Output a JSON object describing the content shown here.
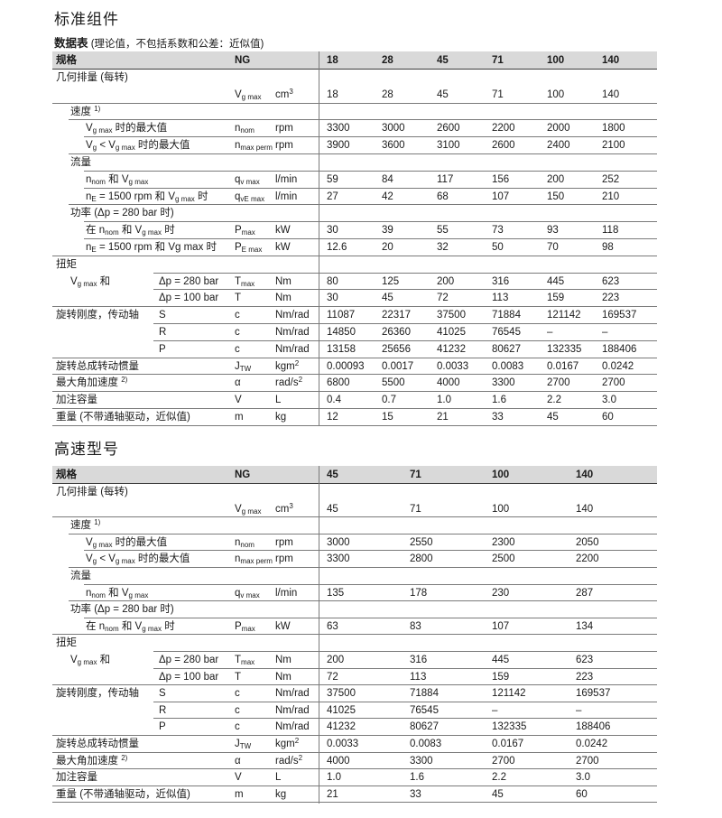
{
  "page": {
    "section1_title": "标准组件",
    "subtitle_bold": "数据表",
    "subtitle_rest": "(理论值，不包括系数和公差：近似值)",
    "section2_title": "高速型号"
  },
  "colors": {
    "header_bg": "#d9d9d9",
    "rule": "#7a7a7a",
    "header_rule": "#3c3c3c",
    "text": "#1a1a1a"
  },
  "tables": [
    {
      "header": {
        "spec_label": "规格",
        "ng_label": "NG",
        "sizes": [
          "18",
          "28",
          "45",
          "71",
          "100",
          "140"
        ]
      },
      "value_offsets": [
        304,
        365,
        426,
        487,
        548,
        609
      ],
      "rows": [
        {
          "label": "几何排量 (每转)",
          "indent": 0,
          "rule": "none"
        },
        {
          "symbol": "V~g max~",
          "unit": "cm^3^",
          "values": [
            "18",
            "28",
            "45",
            "71",
            "100",
            "140"
          ],
          "rule": "full"
        },
        {
          "label": "速度 ^1)^",
          "indent": 1,
          "rule": "i1"
        },
        {
          "label": "V~g max~ 时的最大值",
          "indent": 2,
          "symbol": "n~nom~",
          "unit": "rpm",
          "values": [
            "3300",
            "3000",
            "2600",
            "2200",
            "2000",
            "1800"
          ],
          "rule": "i2"
        },
        {
          "label": "V~g~ < V~g max~ 时的最大值",
          "indent": 2,
          "symbol": "n~max perm~",
          "unit": "rpm",
          "values": [
            "3900",
            "3600",
            "3100",
            "2600",
            "2400",
            "2100"
          ],
          "rule": "i1"
        },
        {
          "label": "流量",
          "indent": 1,
          "rule": "i2"
        },
        {
          "label": "n~nom~ 和 V~g max~",
          "indent": 2,
          "symbol": "q~v max~",
          "unit": "l/min",
          "values": [
            "59",
            "84",
            "117",
            "156",
            "200",
            "252"
          ],
          "rule": "i2"
        },
        {
          "label": "n~E~ = 1500 rpm 和 V~g max~ 时",
          "indent": 2,
          "symbol": "q~vE max~",
          "unit": "l/min",
          "values": [
            "27",
            "42",
            "68",
            "107",
            "150",
            "210"
          ],
          "rule": "i1"
        },
        {
          "label": "功率 (Δp = 280 bar 时)",
          "indent": 1,
          "rule": "i2"
        },
        {
          "label": "在 n~nom~ 和 V~g max~ 时",
          "indent": 2,
          "symbol": "P~max~",
          "unit": "kW",
          "values": [
            "30",
            "39",
            "55",
            "73",
            "93",
            "118"
          ],
          "rule": "i2"
        },
        {
          "label": "n~E~ = 1500 rpm 和 Vg max 时",
          "indent": 2,
          "symbol": "P~E max~",
          "unit": "kW",
          "values": [
            "12.6",
            "20",
            "32",
            "50",
            "70",
            "98"
          ],
          "rule": "full"
        },
        {
          "label": "扭矩",
          "indent": 0,
          "rule": "sub"
        },
        {
          "label": "V~g max~ 和",
          "indent": 1,
          "sublabel": "Δp = 280 bar",
          "symbol": "T~max~",
          "unit": "Nm",
          "values": [
            "80",
            "125",
            "200",
            "316",
            "445",
            "623"
          ],
          "rule": "sub"
        },
        {
          "sublabel": "Δp = 100 bar",
          "symbol": "T",
          "unit": "Nm",
          "values": [
            "30",
            "45",
            "72",
            "113",
            "159",
            "223"
          ],
          "rule": "full"
        },
        {
          "label": "旋转刚度，传动轴",
          "indent": 0,
          "sublabel": "S",
          "symbol": "c",
          "unit": "Nm/rad",
          "values": [
            "11087",
            "22317",
            "37500",
            "71884",
            "121142",
            "169537"
          ],
          "rule": "sub"
        },
        {
          "sublabel": "R",
          "symbol": "c",
          "unit": "Nm/rad",
          "values": [
            "14850",
            "26360",
            "41025",
            "76545",
            "–",
            "–"
          ],
          "rule": "sub"
        },
        {
          "sublabel": "P",
          "symbol": "c",
          "unit": "Nm/rad",
          "values": [
            "13158",
            "25656",
            "41232",
            "80627",
            "132335",
            "188406"
          ],
          "rule": "full"
        },
        {
          "label": "旋转总成转动惯量",
          "indent": 0,
          "symbol": "J~TW~",
          "unit": "kgm^2^",
          "values": [
            "0.00093",
            "0.0017",
            "0.0033",
            "0.0083",
            "0.0167",
            "0.0242"
          ],
          "rule": "full"
        },
        {
          "label": "最大角加速度 ^2)^",
          "indent": 0,
          "symbol": "α",
          "unit": "rad/s^2^",
          "values": [
            "6800",
            "5500",
            "4000",
            "3300",
            "2700",
            "2700"
          ],
          "rule": "full"
        },
        {
          "label": "加注容量",
          "indent": 0,
          "symbol": "V",
          "unit": "L",
          "values": [
            "0.4",
            "0.7",
            "1.0",
            "1.6",
            "2.2",
            "3.0"
          ],
          "rule": "full"
        },
        {
          "label": "重量 (不带通轴驱动，近似值)",
          "indent": 0,
          "symbol": "m",
          "unit": "kg",
          "values": [
            "12",
            "15",
            "21",
            "33",
            "45",
            "60"
          ],
          "rule": "full"
        }
      ]
    },
    {
      "header": {
        "spec_label": "规格",
        "ng_label": "NG",
        "sizes": [
          "45",
          "71",
          "100",
          "140"
        ]
      },
      "value_offsets": [
        304,
        396,
        487,
        580
      ],
      "rows": [
        {
          "label": "几何排量 (每转)",
          "indent": 0,
          "rule": "none"
        },
        {
          "symbol": "V~g max~",
          "unit": "cm^3^",
          "values": [
            "45",
            "71",
            "100",
            "140"
          ],
          "rule": "full"
        },
        {
          "label": "速度 ^1)^",
          "indent": 1,
          "rule": "i1"
        },
        {
          "label": "V~g max~ 时的最大值",
          "indent": 2,
          "symbol": "n~nom~",
          "unit": "rpm",
          "values": [
            "3000",
            "2550",
            "2300",
            "2050"
          ],
          "rule": "i2"
        },
        {
          "label": "V~g~ < V~g max~ 时的最大值",
          "indent": 2,
          "symbol": "n~max perm~",
          "unit": "rpm",
          "values": [
            "3300",
            "2800",
            "2500",
            "2200"
          ],
          "rule": "i1"
        },
        {
          "label": "流量",
          "indent": 1,
          "rule": "i2"
        },
        {
          "label": "n~nom~ 和 V~g max~",
          "indent": 2,
          "symbol": "q~v max~",
          "unit": "l/min",
          "values": [
            "135",
            "178",
            "230",
            "287"
          ],
          "rule": "i1"
        },
        {
          "label": "功率 (Δp = 280 bar 时)",
          "indent": 1,
          "rule": "i2"
        },
        {
          "label": "在 n~nom~ 和 V~g max~ 时",
          "indent": 2,
          "symbol": "P~max~",
          "unit": "kW",
          "values": [
            "63",
            "83",
            "107",
            "134"
          ],
          "rule": "full"
        },
        {
          "label": "扭矩",
          "indent": 0,
          "rule": "sub"
        },
        {
          "label": "V~g max~ 和",
          "indent": 1,
          "sublabel": "Δp = 280 bar",
          "symbol": "T~max~",
          "unit": "Nm",
          "values": [
            "200",
            "316",
            "445",
            "623"
          ],
          "rule": "sub"
        },
        {
          "sublabel": "Δp = 100 bar",
          "symbol": "T",
          "unit": "Nm",
          "values": [
            "72",
            "113",
            "159",
            "223"
          ],
          "rule": "full"
        },
        {
          "label": "旋转刚度，传动轴",
          "indent": 0,
          "sublabel": "S",
          "symbol": "c",
          "unit": "Nm/rad",
          "values": [
            "37500",
            "71884",
            "121142",
            "169537"
          ],
          "rule": "sub"
        },
        {
          "sublabel": "R",
          "symbol": "c",
          "unit": "Nm/rad",
          "values": [
            "41025",
            "76545",
            "–",
            "–"
          ],
          "rule": "sub"
        },
        {
          "sublabel": "P",
          "symbol": "c",
          "unit": "Nm/rad",
          "values": [
            "41232",
            "80627",
            "132335",
            "188406"
          ],
          "rule": "full"
        },
        {
          "label": "旋转总成转动惯量",
          "indent": 0,
          "symbol": "J~TW~",
          "unit": "kgm^2^",
          "values": [
            "0.0033",
            "0.0083",
            "0.0167",
            "0.0242"
          ],
          "rule": "full"
        },
        {
          "label": "最大角加速度 ^2)^",
          "indent": 0,
          "symbol": "α",
          "unit": "rad/s^2^",
          "values": [
            "4000",
            "3300",
            "2700",
            "2700"
          ],
          "rule": "full"
        },
        {
          "label": "加注容量",
          "indent": 0,
          "symbol": "V",
          "unit": "L",
          "values": [
            "1.0",
            "1.6",
            "2.2",
            "3.0"
          ],
          "rule": "full"
        },
        {
          "label": "重量 (不带通轴驱动，近似值)",
          "indent": 0,
          "symbol": "m",
          "unit": "kg",
          "values": [
            "21",
            "33",
            "45",
            "60"
          ],
          "rule": "full"
        }
      ]
    }
  ]
}
